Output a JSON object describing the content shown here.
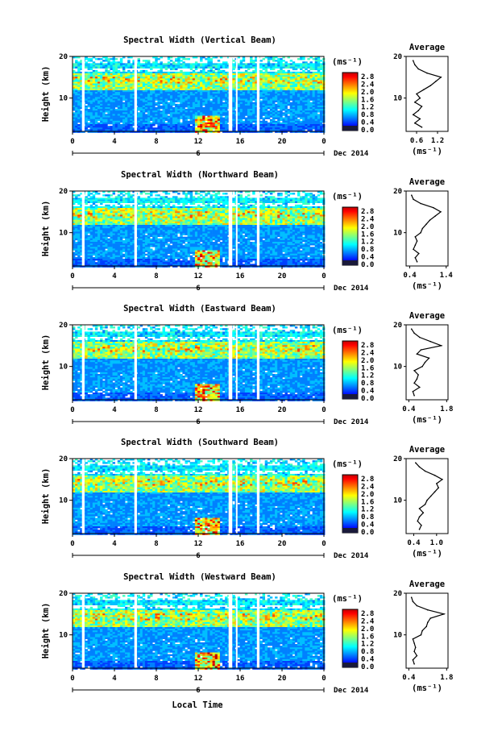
{
  "figure": {
    "x_axis_title": "Local Time",
    "date_label": "Dec 2014",
    "day_label": "6",
    "colorbar_unit": "(ms⁻¹)",
    "colorbar_ticks": [
      "0.0",
      "0.4",
      "0.8",
      "1.2",
      "1.6",
      "2.0",
      "2.4",
      "2.8"
    ],
    "avg_title": "Average",
    "avg_xlabel": "(ms⁻¹)",
    "y_label": "Height (km)",
    "colorscale": [
      "#00007f",
      "#0000ff",
      "#0040ff",
      "#0080ff",
      "#00bfff",
      "#00ffff",
      "#40ffbf",
      "#80ff80",
      "#bfff40",
      "#ffff00",
      "#ffbf00",
      "#ff8000",
      "#ff4000",
      "#ff0000",
      "#bf0000"
    ]
  },
  "chart_data": [
    {
      "type": "heatmap",
      "title": "Spectral Width (Vertical Beam)",
      "xlabel": "Local Time",
      "ylabel": "Height (km)",
      "xlim": [
        0,
        24
      ],
      "ylim": [
        2,
        20
      ],
      "xticks": [
        "0",
        "4",
        "8",
        "12",
        "16",
        "20",
        "0"
      ],
      "yticks": [
        "10",
        "20"
      ],
      "colorbar": {
        "label": "(ms⁻¹)",
        "range": [
          0.0,
          2.8
        ]
      },
      "gaps_local_time": [
        [
          0.9,
          1.15
        ],
        [
          5.9,
          6.15
        ],
        [
          14.9,
          15.25
        ],
        [
          15.6,
          15.75
        ],
        [
          17.6,
          17.85
        ]
      ],
      "average_profile": {
        "title": "Average",
        "xlabel": "(ms⁻¹)",
        "xticks": [
          "0.6",
          "1.2"
        ],
        "xlim": [
          0.3,
          1.5
        ],
        "ylim": [
          2,
          20
        ],
        "height": [
          3,
          4,
          5,
          6,
          7,
          8,
          9,
          10,
          11,
          12,
          13,
          14,
          15,
          16,
          17,
          18,
          19
        ],
        "values": [
          0.75,
          0.55,
          0.7,
          0.5,
          0.65,
          0.75,
          0.55,
          0.7,
          0.6,
          0.8,
          1.0,
          1.15,
          1.3,
          0.9,
          0.65,
          0.55,
          0.5
        ]
      }
    },
    {
      "type": "heatmap",
      "title": "Spectral Width (Northward Beam)",
      "xlabel": "Local Time",
      "ylabel": "Height (km)",
      "xlim": [
        0,
        24
      ],
      "ylim": [
        2,
        20
      ],
      "xticks": [
        "0",
        "4",
        "8",
        "12",
        "16",
        "20",
        "0"
      ],
      "yticks": [
        "10",
        "20"
      ],
      "colorbar": {
        "label": "(ms⁻¹)",
        "range": [
          0.0,
          2.8
        ]
      },
      "gaps_local_time": [
        [
          0.9,
          1.15
        ],
        [
          5.9,
          6.15
        ],
        [
          14.9,
          15.25
        ],
        [
          15.6,
          15.75
        ],
        [
          17.6,
          17.85
        ]
      ],
      "average_profile": {
        "title": "Average",
        "xlabel": "(ms⁻¹)",
        "xticks": [
          "0.4",
          "1.4"
        ],
        "xlim": [
          0.3,
          1.45
        ],
        "ylim": [
          2,
          20
        ],
        "height": [
          3,
          4,
          5,
          6,
          7,
          8,
          9,
          10,
          11,
          12,
          13,
          14,
          15,
          16,
          17,
          18,
          19
        ],
        "values": [
          0.6,
          0.55,
          0.65,
          0.5,
          0.55,
          0.6,
          0.55,
          0.7,
          0.75,
          0.85,
          0.95,
          1.1,
          1.25,
          1.05,
          0.7,
          0.5,
          0.45
        ]
      }
    },
    {
      "type": "heatmap",
      "title": "Spectral Width (Eastward Beam)",
      "xlabel": "Local Time",
      "ylabel": "Height (km)",
      "xlim": [
        0,
        24
      ],
      "ylim": [
        2,
        20
      ],
      "xticks": [
        "0",
        "4",
        "8",
        "12",
        "16",
        "20",
        "0"
      ],
      "yticks": [
        "10",
        "20"
      ],
      "colorbar": {
        "label": "(ms⁻¹)",
        "range": [
          0.0,
          2.8
        ]
      },
      "gaps_local_time": [
        [
          0.9,
          1.15
        ],
        [
          5.9,
          6.15
        ],
        [
          14.9,
          15.25
        ],
        [
          15.6,
          15.75
        ],
        [
          17.6,
          17.85
        ]
      ],
      "average_profile": {
        "title": "Average",
        "xlabel": "(ms⁻¹)",
        "xticks": [
          "0.4",
          "1.8"
        ],
        "xlim": [
          0.3,
          1.85
        ],
        "ylim": [
          2,
          20
        ],
        "height": [
          3,
          4,
          5,
          6,
          7,
          8,
          9,
          10,
          11,
          12,
          13,
          14,
          15,
          16,
          17,
          18,
          19
        ],
        "values": [
          0.6,
          0.55,
          0.8,
          0.6,
          0.7,
          0.75,
          0.6,
          0.9,
          1.0,
          1.15,
          0.7,
          0.85,
          1.6,
          1.2,
          0.8,
          0.6,
          0.5
        ]
      }
    },
    {
      "type": "heatmap",
      "title": "Spectral Width (Southward Beam)",
      "xlabel": "Local Time",
      "ylabel": "Height (km)",
      "xlim": [
        0,
        24
      ],
      "ylim": [
        2,
        20
      ],
      "xticks": [
        "0",
        "4",
        "8",
        "12",
        "16",
        "20",
        "0"
      ],
      "yticks": [
        "10",
        "20"
      ],
      "colorbar": {
        "label": "(ms⁻¹)",
        "range": [
          0.0,
          2.8
        ]
      },
      "gaps_local_time": [
        [
          0.9,
          1.15
        ],
        [
          5.9,
          6.15
        ],
        [
          14.9,
          15.25
        ],
        [
          15.6,
          15.75
        ],
        [
          17.6,
          17.85
        ]
      ],
      "average_profile": {
        "title": "Average",
        "xlabel": "(ms⁻¹)",
        "xticks": [
          "0.4",
          "1.0"
        ],
        "xlim": [
          0.2,
          1.3
        ],
        "ylim": [
          2,
          20
        ],
        "height": [
          3,
          4,
          5,
          6,
          7,
          8,
          9,
          10,
          11,
          12,
          13,
          14,
          15,
          16,
          17,
          18,
          19
        ],
        "values": [
          0.55,
          0.6,
          0.5,
          0.55,
          0.65,
          0.55,
          0.7,
          0.75,
          0.85,
          0.95,
          1.05,
          1.0,
          1.15,
          0.95,
          0.7,
          0.55,
          0.45
        ]
      }
    },
    {
      "type": "heatmap",
      "title": "Spectral Width (Westward Beam)",
      "xlabel": "Local Time",
      "ylabel": "Height (km)",
      "xlim": [
        0,
        24
      ],
      "ylim": [
        2,
        20
      ],
      "xticks": [
        "0",
        "4",
        "8",
        "12",
        "16",
        "20",
        "0"
      ],
      "yticks": [
        "10",
        "20"
      ],
      "colorbar": {
        "label": "(ms⁻¹)",
        "range": [
          0.0,
          2.8
        ]
      },
      "gaps_local_time": [
        [
          0.9,
          1.15
        ],
        [
          5.9,
          6.15
        ],
        [
          14.9,
          15.25
        ],
        [
          15.6,
          15.75
        ],
        [
          17.6,
          17.85
        ]
      ],
      "average_profile": {
        "title": "Average",
        "xlabel": "(ms⁻¹)",
        "xticks": [
          "0.4",
          "1.8"
        ],
        "xlim": [
          0.3,
          1.85
        ],
        "ylim": [
          2,
          20
        ],
        "height": [
          3,
          4,
          5,
          6,
          7,
          8,
          9,
          10,
          11,
          12,
          13,
          14,
          15,
          16,
          17,
          18,
          19
        ],
        "values": [
          0.6,
          0.55,
          0.7,
          0.6,
          0.65,
          0.6,
          0.55,
          0.85,
          0.9,
          1.05,
          1.1,
          1.2,
          1.7,
          1.1,
          0.7,
          0.55,
          0.5
        ]
      }
    }
  ]
}
